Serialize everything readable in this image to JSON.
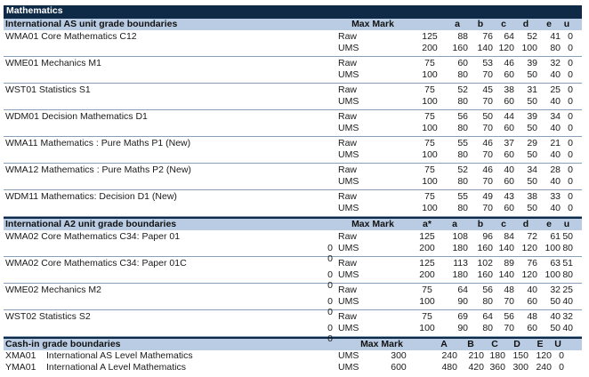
{
  "title": "Mathematics",
  "as_section": {
    "heading": "International AS unit grade boundaries",
    "columns": [
      "Max Mark",
      "a",
      "b",
      "c",
      "d",
      "e",
      "u"
    ],
    "units": [
      {
        "name": "WMA01  Core Mathematics C12",
        "rows": [
          {
            "type": "Raw",
            "max": "125",
            "grades": [
              "88",
              "76",
              "64",
              "52",
              "41",
              "0"
            ]
          },
          {
            "type": "UMS",
            "max": "200",
            "grades": [
              "160",
              "140",
              "120",
              "100",
              "80",
              "0"
            ]
          }
        ]
      },
      {
        "name": "WME01  Mechanics M1",
        "rows": [
          {
            "type": "Raw",
            "max": "75",
            "grades": [
              "60",
              "53",
              "46",
              "39",
              "32",
              "0"
            ]
          },
          {
            "type": "UMS",
            "max": "100",
            "grades": [
              "80",
              "70",
              "60",
              "50",
              "40",
              "0"
            ]
          }
        ]
      },
      {
        "name": "WST01  Statistics S1",
        "rows": [
          {
            "type": "Raw",
            "max": "75",
            "grades": [
              "52",
              "45",
              "38",
              "31",
              "25",
              "0"
            ]
          },
          {
            "type": "UMS",
            "max": "100",
            "grades": [
              "80",
              "70",
              "60",
              "50",
              "40",
              "0"
            ]
          }
        ]
      },
      {
        "name": "WDM01  Decision Mathematics D1",
        "rows": [
          {
            "type": "Raw",
            "max": "75",
            "grades": [
              "56",
              "50",
              "44",
              "39",
              "34",
              "0"
            ]
          },
          {
            "type": "UMS",
            "max": "100",
            "grades": [
              "80",
              "70",
              "60",
              "50",
              "40",
              "0"
            ]
          }
        ]
      },
      {
        "name": "WMA11  Mathematics : Pure Maths P1 (New)",
        "rows": [
          {
            "type": "Raw",
            "max": "75",
            "grades": [
              "55",
              "46",
              "37",
              "29",
              "21",
              "0"
            ]
          },
          {
            "type": "UMS",
            "max": "100",
            "grades": [
              "80",
              "70",
              "60",
              "50",
              "40",
              "0"
            ]
          }
        ]
      },
      {
        "name": "WMA12  Mathematics : Pure Maths P2 (New)",
        "rows": [
          {
            "type": "Raw",
            "max": "75",
            "grades": [
              "52",
              "46",
              "40",
              "34",
              "28",
              "0"
            ]
          },
          {
            "type": "UMS",
            "max": "100",
            "grades": [
              "80",
              "70",
              "60",
              "50",
              "40",
              "0"
            ]
          }
        ]
      },
      {
        "name": "WDM11  Mathematics: Decision D1 (New)",
        "rows": [
          {
            "type": "Raw",
            "max": "75",
            "grades": [
              "55",
              "49",
              "43",
              "38",
              "33",
              "0"
            ]
          },
          {
            "type": "UMS",
            "max": "100",
            "grades": [
              "80",
              "70",
              "60",
              "50",
              "40",
              "0"
            ]
          }
        ]
      }
    ]
  },
  "a2_section": {
    "heading": "International A2 unit grade boundaries",
    "columns": [
      "Max Mark",
      "a*",
      "a",
      "b",
      "c",
      "d",
      "e",
      "u"
    ],
    "units": [
      {
        "name": "WMA02  Core Mathematics C34: Paper 01",
        "rows": [
          {
            "type": "Raw",
            "max": "125",
            "grades": [
              "108",
              "96",
              "84",
              "72",
              "61",
              "50",
              "0"
            ]
          },
          {
            "type": "UMS",
            "max": "200",
            "grades": [
              "180",
              "160",
              "140",
              "120",
              "100",
              "80",
              "0"
            ]
          }
        ]
      },
      {
        "name": "WMA02  Core Mathematics C34: Paper 01C",
        "rows": [
          {
            "type": "Raw",
            "max": "125",
            "grades": [
              "113",
              "102",
              "89",
              "76",
              "63",
              "51",
              "0"
            ]
          },
          {
            "type": "UMS",
            "max": "200",
            "grades": [
              "180",
              "160",
              "140",
              "120",
              "100",
              "80",
              "0"
            ]
          }
        ]
      },
      {
        "name": "WME02  Mechanics M2",
        "rows": [
          {
            "type": "Raw",
            "max": "75",
            "grades": [
              "64",
              "56",
              "48",
              "40",
              "32",
              "25",
              "0"
            ]
          },
          {
            "type": "UMS",
            "max": "100",
            "grades": [
              "90",
              "80",
              "70",
              "60",
              "50",
              "40",
              "0"
            ]
          }
        ]
      },
      {
        "name": "WST02  Statistics S2",
        "rows": [
          {
            "type": "Raw",
            "max": "75",
            "grades": [
              "69",
              "64",
              "56",
              "48",
              "40",
              "32",
              "0"
            ]
          },
          {
            "type": "UMS",
            "max": "100",
            "grades": [
              "90",
              "80",
              "70",
              "60",
              "50",
              "40",
              "0"
            ]
          }
        ]
      }
    ]
  },
  "cash_section": {
    "heading": "Cash-in grade boundaries",
    "columns": [
      "Max Mark",
      "A",
      "B",
      "C",
      "D",
      "E",
      "U"
    ],
    "rows": [
      {
        "code": "XMA01",
        "name": "International AS Level Mathematics",
        "type": "UMS",
        "max": "300",
        "grades": [
          "240",
          "210",
          "180",
          "150",
          "120",
          "0"
        ]
      },
      {
        "code": "YMA01",
        "name": "International A Level Mathematics",
        "type": "UMS",
        "max": "600",
        "grades": [
          "480",
          "420",
          "360",
          "300",
          "240",
          "0"
        ]
      }
    ]
  }
}
